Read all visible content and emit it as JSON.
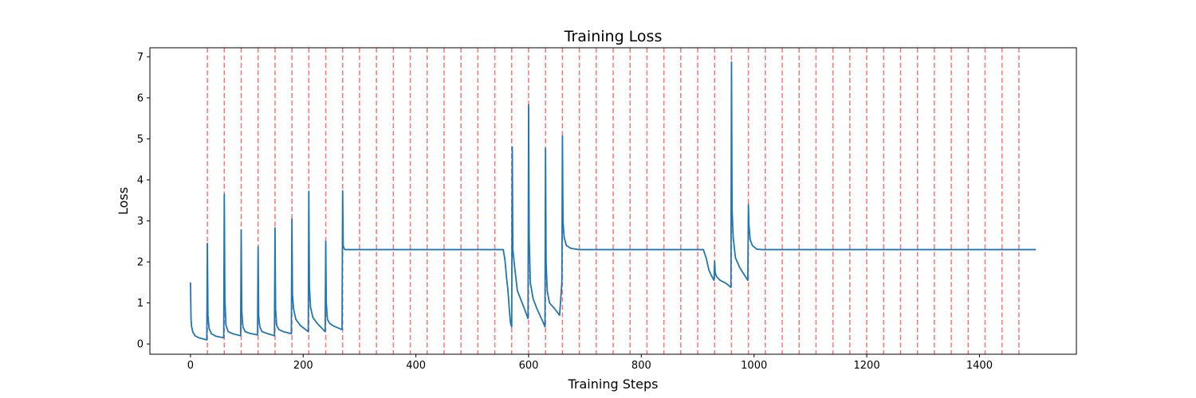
{
  "chart_data": {
    "type": "line",
    "title": "Training Loss",
    "xlabel": "Training Steps",
    "ylabel": "Loss",
    "xlim": [
      -72,
      1572
    ],
    "ylim": [
      -0.25,
      7.22
    ],
    "xticks": [
      0,
      200,
      400,
      600,
      800,
      1000,
      1200,
      1400
    ],
    "yticks": [
      0,
      1,
      2,
      3,
      4,
      5,
      6,
      7
    ],
    "grid": false,
    "line_color": "#1f77b4",
    "vline_color": "#ff0000",
    "vlines": [
      30,
      60,
      90,
      120,
      150,
      180,
      210,
      240,
      270,
      300,
      330,
      360,
      390,
      420,
      450,
      480,
      510,
      540,
      570,
      600,
      630,
      660,
      690,
      720,
      750,
      780,
      810,
      840,
      870,
      900,
      930,
      960,
      990,
      1020,
      1050,
      1080,
      1110,
      1140,
      1170,
      1200,
      1230,
      1260,
      1290,
      1320,
      1350,
      1380,
      1410,
      1440,
      1470
    ],
    "series": [
      {
        "x": [
          0,
          1,
          2,
          4,
          8,
          15,
          29,
          30,
          31,
          33,
          37,
          45,
          59,
          60,
          61,
          63,
          67,
          75,
          89,
          90,
          91,
          93,
          97,
          105,
          119,
          120,
          121,
          123,
          127,
          135,
          149,
          150,
          151,
          153,
          157,
          165,
          179,
          180,
          181,
          183,
          187,
          195,
          209,
          210,
          211,
          213,
          217,
          225,
          239,
          240,
          241,
          243,
          247,
          255,
          269,
          270,
          271,
          273,
          275,
          300,
          400,
          500,
          555,
          558,
          561,
          563,
          565,
          566,
          568,
          569,
          570,
          571,
          572,
          575,
          580,
          590,
          599,
          600,
          601,
          603,
          608,
          615,
          625,
          629,
          630,
          631,
          633,
          637,
          645,
          655,
          659,
          660,
          661,
          663,
          667,
          675,
          689,
          700,
          800,
          900,
          910,
          915,
          920,
          925,
          929,
          930,
          931,
          933,
          940,
          950,
          959,
          960,
          961,
          963,
          967,
          975,
          989,
          990,
          991,
          993,
          997,
          1005,
          1015,
          1100,
          1200,
          1300,
          1400,
          1500
        ],
        "y": [
          1.5,
          0.6,
          0.42,
          0.3,
          0.2,
          0.15,
          0.1,
          2.45,
          0.7,
          0.38,
          0.25,
          0.19,
          0.15,
          3.65,
          1.1,
          0.45,
          0.3,
          0.25,
          0.2,
          2.78,
          0.8,
          0.42,
          0.3,
          0.26,
          0.22,
          2.37,
          0.7,
          0.42,
          0.3,
          0.26,
          0.2,
          2.83,
          0.85,
          0.45,
          0.35,
          0.3,
          0.25,
          3.05,
          1.2,
          0.85,
          0.6,
          0.45,
          0.3,
          3.72,
          1.4,
          0.9,
          0.65,
          0.5,
          0.3,
          2.5,
          1.0,
          0.6,
          0.5,
          0.43,
          0.35,
          3.73,
          2.4,
          2.31,
          2.3,
          2.3,
          2.3,
          2.3,
          2.3,
          2.05,
          1.6,
          1.35,
          1.0,
          0.8,
          0.5,
          0.45,
          0.42,
          4.8,
          2.3,
          1.9,
          1.3,
          0.95,
          0.62,
          5.83,
          2.6,
          1.5,
          1.1,
          0.85,
          0.55,
          0.42,
          4.77,
          2.0,
          1.3,
          1.0,
          0.88,
          0.7,
          1.5,
          5.07,
          3.0,
          2.6,
          2.4,
          2.33,
          2.3,
          2.3,
          2.3,
          2.3,
          2.3,
          2.1,
          1.8,
          1.65,
          1.55,
          2.02,
          1.75,
          1.65,
          1.55,
          1.48,
          1.38,
          6.87,
          3.3,
          2.6,
          2.1,
          1.85,
          1.55,
          3.4,
          2.9,
          2.55,
          2.4,
          2.31,
          2.3,
          2.3,
          2.3,
          2.3,
          2.3,
          2.3
        ]
      }
    ]
  }
}
